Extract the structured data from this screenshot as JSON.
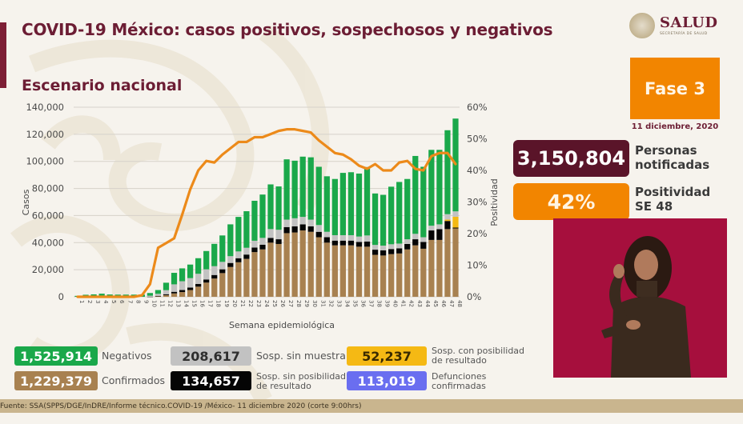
{
  "header": {
    "title": "COVID-19 México: casos positivos, sospechosos y negativos",
    "subtitle": "Escenario nacional"
  },
  "logo": {
    "main": "SALUD",
    "sub": "SECRETARÍA DE SALUD",
    "icon": "mexico-seal-icon"
  },
  "phase": {
    "label": "Fase 3",
    "date": "11 diciembre, 2020"
  },
  "stats": {
    "persons": {
      "value": "3,150,804",
      "label_line1": "Personas",
      "label_line2": "notificadas"
    },
    "positivity": {
      "value": "42%",
      "label_line1": "Positividad",
      "label_line2": "SE 48"
    }
  },
  "legend": {
    "negativos": {
      "value": "1,525,914",
      "label": "Negativos",
      "color": "#1aa84a"
    },
    "confirmados": {
      "value": "1,229,379",
      "label": "Confirmados",
      "color": "#a88150"
    },
    "sin_muestra": {
      "value": "208,617",
      "label": "Sosp. sin muestra",
      "color": "#c2c2c2"
    },
    "sin_posibilidad": {
      "value": "134,657",
      "label_line1": "Sosp. sin posibilidad",
      "label_line2": "de resultado",
      "color": "#050505"
    },
    "con_posibilidad": {
      "value": "52,237",
      "label_line1": "Sosp. con posibilidad",
      "label_line2": "de resultado",
      "color": "#f5b914"
    },
    "defunciones": {
      "value": "113,019",
      "label_line1": "Defunciones",
      "label_line2": "confirmadas",
      "color": "#6a6ef0"
    }
  },
  "footer": {
    "source": "Fuente: SSA(SPPS/DGE/InDRE/Informe técnico.COVID-19 /México- 11 diciembre 2020 (corte 9:00hrs)"
  },
  "chart_data": {
    "type": "bar",
    "stacked": true,
    "title": "Escenario nacional",
    "xlabel": "Semana epidemiológica",
    "ylabel": "Casos",
    "y2label": "Positividad",
    "ylim": [
      0,
      140000
    ],
    "y2lim": [
      0,
      60
    ],
    "yticks": [
      "0",
      "20,000",
      "40,000",
      "60,000",
      "80,000",
      "100,000",
      "120,000",
      "140,000"
    ],
    "y2ticks": [
      "0%",
      "10%",
      "20%",
      "30%",
      "40%",
      "50%",
      "60%"
    ],
    "grid": true,
    "legend_position": "bottom",
    "categories": [
      "1",
      "2",
      "3",
      "4",
      "5",
      "6",
      "7",
      "8",
      "9",
      "10",
      "11",
      "12",
      "13",
      "14",
      "15",
      "16",
      "17",
      "18",
      "19",
      "20",
      "21",
      "22",
      "23",
      "24",
      "25",
      "26",
      "27",
      "28",
      "29",
      "30",
      "31",
      "32",
      "33",
      "34",
      "35",
      "36",
      "37",
      "38",
      "39",
      "40",
      "41",
      "42",
      "43",
      "44",
      "45",
      "46",
      "47",
      "48"
    ],
    "series": [
      {
        "name": "Confirmados",
        "color": "#a88150",
        "values": [
          0,
          0,
          0,
          0,
          0,
          0,
          0,
          0,
          0,
          0,
          300,
          1200,
          2500,
          3500,
          5000,
          7500,
          10500,
          13500,
          17500,
          22000,
          25500,
          28000,
          33000,
          35000,
          40000,
          39000,
          47000,
          47500,
          49000,
          48000,
          44000,
          40000,
          38000,
          38000,
          38000,
          37000,
          37000,
          31000,
          30500,
          31500,
          32000,
          35000,
          38000,
          35500,
          42000,
          42000,
          50000,
          50500
        ]
      },
      {
        "name": "Sosp. sin posibilidad de resultado",
        "color": "#050505",
        "values": [
          0,
          0,
          0,
          0,
          0,
          0,
          0,
          0,
          0,
          100,
          400,
          700,
          1200,
          1500,
          1800,
          2000,
          2300,
          2600,
          2800,
          3000,
          3000,
          3200,
          3400,
          3500,
          3500,
          3500,
          4500,
          4500,
          4500,
          4000,
          4000,
          4000,
          3500,
          3500,
          3500,
          3500,
          3800,
          3800,
          3800,
          3800,
          3800,
          4000,
          4500,
          5000,
          7000,
          8000,
          6000,
          600
        ]
      },
      {
        "name": "Sosp. con posibilidad de resultado",
        "color": "#f5b914",
        "values": [
          0,
          0,
          0,
          0,
          0,
          0,
          0,
          0,
          0,
          0,
          0,
          0,
          0,
          0,
          0,
          0,
          0,
          0,
          0,
          0,
          0,
          0,
          0,
          0,
          0,
          0,
          0,
          0,
          0,
          0,
          0,
          0,
          0,
          0,
          0,
          0,
          0,
          0,
          0,
          0,
          0,
          0,
          0,
          0,
          0,
          0,
          1000,
          8000
        ]
      },
      {
        "name": "Sosp. sin muestra",
        "color": "#c2c2c2",
        "values": [
          0,
          0,
          0,
          0,
          0,
          0,
          0,
          0,
          0,
          700,
          1500,
          3000,
          5500,
          6500,
          7000,
          7500,
          7500,
          6500,
          5500,
          5000,
          5000,
          5000,
          5000,
          5000,
          6500,
          7000,
          5500,
          6000,
          5500,
          5000,
          5000,
          4000,
          4000,
          4000,
          4000,
          4000,
          4500,
          3500,
          3500,
          3500,
          3500,
          3500,
          4000,
          3500,
          3500,
          3500,
          4000,
          4000
        ]
      },
      {
        "name": "Negativos",
        "color": "#1aa84a",
        "values": [
          700,
          1500,
          1800,
          2300,
          1700,
          1600,
          1600,
          1600,
          1600,
          2000,
          2800,
          5500,
          8500,
          9500,
          10000,
          11500,
          13500,
          16500,
          19500,
          23500,
          25500,
          27000,
          29500,
          32000,
          33000,
          32000,
          44500,
          42500,
          44500,
          46000,
          43000,
          41000,
          41500,
          46000,
          46500,
          46500,
          50500,
          38000,
          37500,
          42500,
          45500,
          44500,
          57500,
          52000,
          56000,
          55000,
          62000,
          68500
        ]
      }
    ],
    "line": {
      "name": "Positividad (%)",
      "color": "#ec8a1a",
      "axis": "y2",
      "values": [
        0,
        0,
        0,
        0,
        0,
        0,
        0,
        0,
        0.5,
        4,
        15.5,
        17,
        18.5,
        26,
        34,
        40,
        43,
        42.5,
        45,
        47,
        49,
        49,
        50.5,
        50.5,
        51.5,
        52.5,
        53,
        53,
        52.5,
        52,
        49.5,
        47.5,
        45.5,
        45,
        43.5,
        41.5,
        40.5,
        42,
        40,
        40,
        42.5,
        43,
        40.5,
        40,
        44.5,
        45.5,
        45.5,
        42
      ]
    }
  }
}
